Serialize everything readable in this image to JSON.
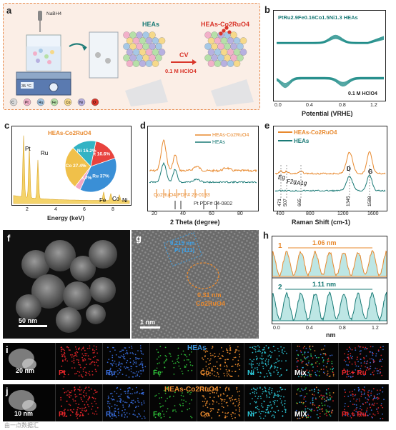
{
  "panel_a": {
    "letter": "a",
    "nabh4": "NaBH4",
    "temp": "35 °C",
    "heas": "HEAs",
    "heas_co2ruo4": "HEAs-Co2RuO4",
    "cv": "CV",
    "hclo4": "0.1 M HClO4",
    "legend": [
      "C",
      "Pt",
      "Ru",
      "Fe",
      "Co",
      "Ni",
      "O"
    ],
    "colors": {
      "C": "#d9d9d9",
      "Pt": "#f2b0c9",
      "Ru": "#a6c8e6",
      "Fe": "#b6e0a8",
      "Co": "#f6d98a",
      "Ni": "#b7b0e0",
      "O": "#d9362b"
    }
  },
  "panel_b": {
    "letter": "b",
    "title": "PtRu2.9Fe0.16Co1.5Ni1.3 HEAs",
    "annotation": "0.1 M HClO4",
    "xlabel": "Potential (VRHE)",
    "xticks": [
      "0.0",
      "0.4",
      "0.8",
      "1.2"
    ],
    "color": "#1a8a86"
  },
  "panel_c": {
    "letter": "c",
    "title": "HEAs-Co2RuO4",
    "xlabel": "Energy (keV)",
    "xticks": [
      "2",
      "4",
      "6",
      "8"
    ],
    "peak_labels": [
      "Pt",
      "Ru",
      "Fe",
      "Co",
      "Ni"
    ],
    "color": "#e8b23a"
  },
  "panel_d": {
    "letter": "d",
    "legend": [
      "HEAs-Co2RuO4",
      "HEAs"
    ],
    "pdf1": "Co2RuO4 PDF# 23-0193",
    "pdf2": "Pt PDF# 04-0802",
    "xlabel": "2 Theta (degree)",
    "xticks": [
      "20",
      "40",
      "60",
      "80"
    ],
    "colors": [
      "#e8892e",
      "#1a7a76"
    ]
  },
  "panel_e": {
    "letter": "e",
    "legend": [
      "HEAs-Co2RuO4",
      "HEAs"
    ],
    "bands": [
      "Eg",
      "F2g",
      "A1g",
      "D",
      "G"
    ],
    "band_values": [
      "471",
      "507",
      "665",
      "1345",
      "1588"
    ],
    "xlabel": "Raman Shift (cm-1)",
    "xticks": [
      "400",
      "800",
      "1200",
      "1600"
    ],
    "colors": [
      "#e8892e",
      "#1a7a76"
    ]
  },
  "panel_f": {
    "letter": "f",
    "scale": "50 nm"
  },
  "panel_g": {
    "letter": "g",
    "scale": "1 nm",
    "d1": "0.215 nm",
    "d2": "Pt (111)",
    "d3": "0.31 nm",
    "d4": "Co2RuO4"
  },
  "panel_h": {
    "letter": "h",
    "label1": "1",
    "value1": "1.06 nm",
    "label2": "2",
    "value2": "1.11 nm",
    "xlabel": "nm",
    "xticks": [
      "0.0",
      "0.4",
      "0.8",
      "1.2"
    ]
  },
  "panel_i": {
    "letter": "i",
    "title": "HEAs",
    "scale": "20 nm",
    "labels": [
      "Pt",
      "Ru",
      "Fe",
      "Co",
      "Ni",
      "Mix",
      "Pt + Ru"
    ]
  },
  "panel_j": {
    "letter": "j",
    "title": "HEAs-Co2RuO4",
    "scale": "10 nm",
    "labels": [
      "Pt",
      "Ru",
      "Fe",
      "Co",
      "Ni",
      "MIX",
      "Pt + Ru"
    ]
  },
  "chart_data": [
    {
      "type": "pie",
      "title": "",
      "categories": [
        "Pt",
        "Ru",
        "Fe",
        "Co",
        "Ni"
      ],
      "values": [
        16.6,
        37,
        3.7,
        27.4,
        15.2
      ],
      "labels": [
        "Pt 16.6%",
        "Ru 37%",
        "Fe 3.7%",
        "Co 27.4%",
        "Ni 15.2%"
      ],
      "colors": [
        "#e8433e",
        "#3a8fd6",
        "#f4a6c4",
        "#f0c04a",
        "#33b3c4"
      ]
    }
  ],
  "watermark": "由一点数据汇"
}
